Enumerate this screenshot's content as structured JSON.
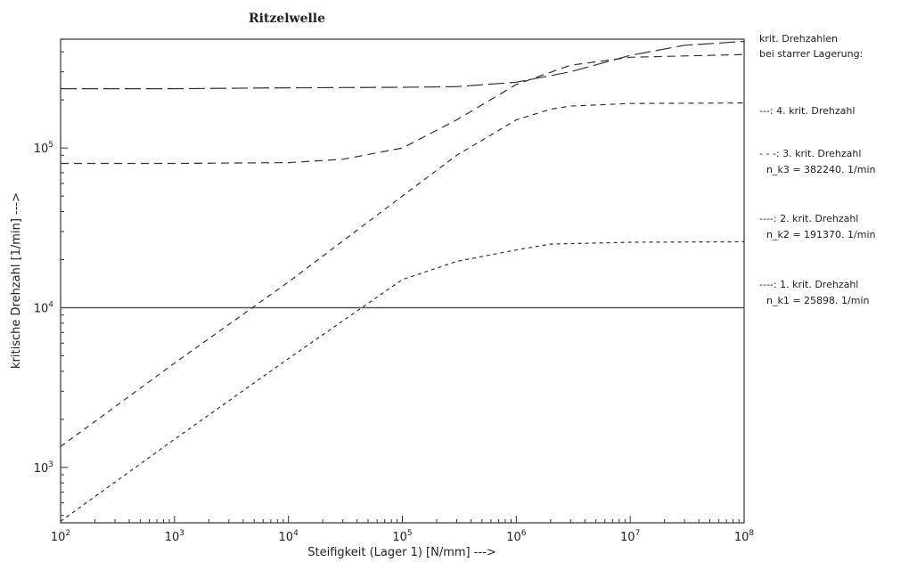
{
  "chart_data": {
    "type": "line",
    "title": "Ritzelwelle",
    "xlabel": "Steifigkeit (Lager 1) [N/mm] --->",
    "ylabel": "kritische Drehzahl [1/min] --->",
    "xscale": "log",
    "yscale": "log",
    "xlim": [
      100,
      100000000
    ],
    "ylim": [
      450,
      480000
    ],
    "grid": false,
    "legend_placement": "right",
    "x_ticks": [
      {
        "value": 100,
        "base": "10",
        "exp": "2"
      },
      {
        "value": 1000,
        "base": "10",
        "exp": "3"
      },
      {
        "value": 10000,
        "base": "10",
        "exp": "4"
      },
      {
        "value": 100000,
        "base": "10",
        "exp": "5"
      },
      {
        "value": 1000000,
        "base": "10",
        "exp": "6"
      },
      {
        "value": 10000000,
        "base": "10",
        "exp": "7"
      },
      {
        "value": 100000000,
        "base": "10",
        "exp": "8"
      }
    ],
    "y_ticks": [
      {
        "value": 1000,
        "base": "10",
        "exp": "3"
      },
      {
        "value": 10000,
        "base": "10",
        "exp": "4"
      },
      {
        "value": 100000,
        "base": "10",
        "exp": "5"
      }
    ],
    "reference_lines": [
      {
        "value": 10000,
        "axis": "y"
      }
    ],
    "legend_header": [
      "krit. Drehzahlen",
      "bei starrer Lagerung:"
    ],
    "series": [
      {
        "name": "4. krit. Drehzahl",
        "legend_lines": [
          "---: 4. krit. Drehzahl"
        ],
        "dash": "18,6",
        "x": [
          100,
          1000,
          10000,
          100000,
          300000,
          1000000,
          3000000,
          10000000,
          30000000,
          100000000
        ],
        "y": [
          235000,
          235000,
          238000,
          240000,
          242000,
          258000,
          300000,
          380000,
          440000,
          465000
        ]
      },
      {
        "name": "3. krit. Drehzahl",
        "legend_lines": [
          "- - -: 3. krit. Drehzahl",
          "n_k3 = 382240. 1/min"
        ],
        "dash": "9,6",
        "x": [
          100,
          1000,
          10000,
          30000,
          100000,
          300000,
          1000000,
          3000000,
          10000000,
          100000000
        ],
        "y": [
          80000,
          80000,
          81000,
          85000,
          100000,
          150000,
          250000,
          330000,
          370000,
          385000
        ]
      },
      {
        "name": "2. krit. Drehzahl",
        "legend_lines": [
          "----: 2. krit. Drehzahl",
          "n_k2 = 191370. 1/min"
        ],
        "dash": "6,5",
        "x": [
          100,
          1000,
          10000,
          100000,
          300000,
          1000000,
          2000000,
          3000000,
          10000000,
          100000000
        ],
        "y": [
          1350,
          4500,
          14500,
          50000,
          90000,
          150000,
          175000,
          183000,
          190000,
          191370
        ]
      },
      {
        "name": "1. krit. Drehzahl",
        "legend_lines": [
          "----: 1. krit. Drehzahl",
          "n_k1 =  25898. 1/min"
        ],
        "dash": "4,4",
        "x": [
          100,
          1000,
          10000,
          100000,
          300000,
          1000000,
          2000000,
          10000000,
          100000000
        ],
        "y": [
          460,
          1500,
          4800,
          15000,
          19500,
          23000,
          25000,
          25700,
          25898
        ]
      }
    ]
  }
}
